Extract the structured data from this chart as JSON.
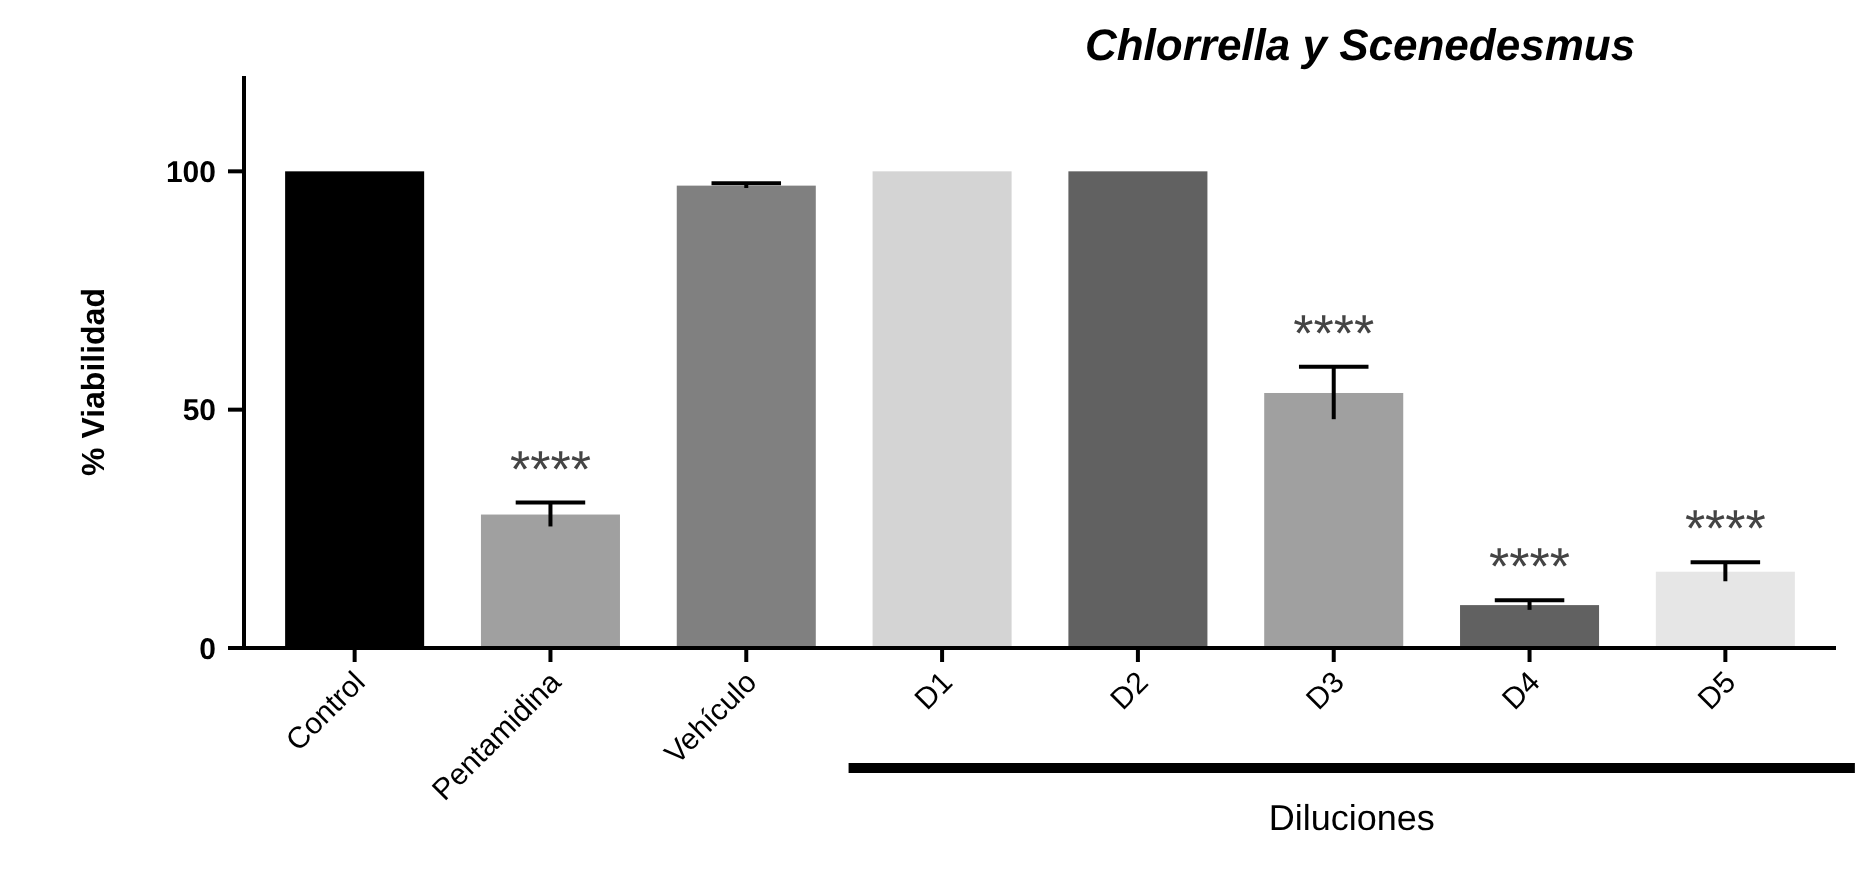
{
  "chart_data": {
    "type": "bar",
    "title": "Chlorrella y Scenedesmus",
    "ylabel": "% Viabilidad",
    "categories": [
      "Control",
      "Pentamidina",
      "Vehículo",
      "D1",
      "D2",
      "D3",
      "D4",
      "D5"
    ],
    "values": [
      100,
      28,
      97,
      100,
      100,
      53.5,
      9,
      16
    ],
    "errors": [
      null,
      2.5,
      0.5,
      null,
      null,
      5.5,
      1,
      2
    ],
    "colors": [
      "#000000",
      "#a0a0a0",
      "#808080",
      "#d4d4d4",
      "#616161",
      "#a0a0a0",
      "#616161",
      "#e6e6e6"
    ],
    "ylim": [
      0,
      120
    ],
    "yticks": [
      0,
      50,
      100
    ],
    "grid": false,
    "annotations": [
      {
        "text": "****",
        "x": "Pentamidina",
        "y": 30.5
      },
      {
        "text": "****",
        "x": "D3",
        "y": 59
      },
      {
        "text": "****",
        "x": "D4",
        "y": 10
      },
      {
        "text": "****",
        "x": "D5",
        "y": 18
      },
      "Diluciones"
    ]
  }
}
